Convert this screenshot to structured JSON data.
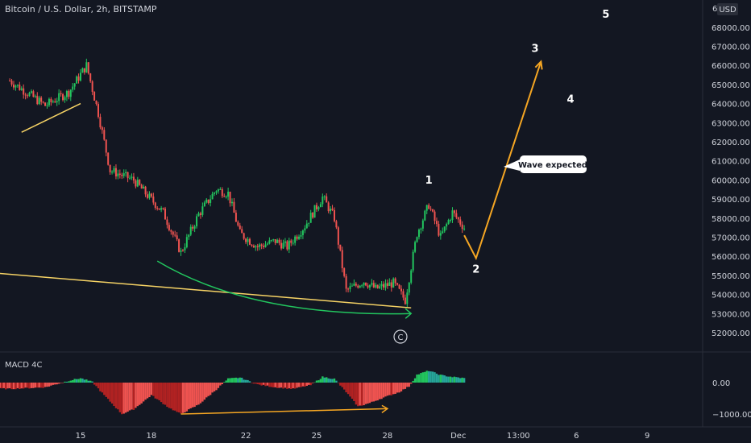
{
  "header": {
    "symbol_title": "Bitcoin / U.S. Dollar, 2h, BITSTAMP",
    "currency_badge": "USD"
  },
  "colors": {
    "background": "#131722",
    "up": "#26a69a",
    "up_bright": "#22c55e",
    "down": "#ef5350",
    "down_dark": "#b22222",
    "wave_path": "#f5a623",
    "trendline": "#f6d365",
    "support_arrow": "#22c55e",
    "text": "#d1d4dc"
  },
  "chart_data": [
    {
      "type": "candlestick",
      "title": "Bitcoin / U.S. Dollar, 2h, BITSTAMP",
      "ylabel": "USD",
      "ylim": [
        51000,
        69000
      ],
      "y_ticks": [
        52000,
        53000,
        54000,
        55000,
        56000,
        57000,
        58000,
        59000,
        60000,
        61000,
        62000,
        63000,
        64000,
        65000,
        66000,
        67000,
        68000
      ],
      "y_tick_labels": [
        "52000.00",
        "53000.00",
        "54000.00",
        "55000.00",
        "56000.00",
        "57000.00",
        "58000.00",
        "59000.00",
        "60000.00",
        "61000.00",
        "62000.00",
        "63000.00",
        "64000.00",
        "65000.00",
        "66000.00",
        "67000.00",
        "68000.00"
      ],
      "x_ticks": [
        "15",
        "18",
        "22",
        "25",
        "28",
        "Dec",
        "13:00",
        "6",
        "9"
      ],
      "price_close_path": [
        {
          "x": "Nov 12 00:00",
          "y": 65200
        },
        {
          "x": "Nov 13 12:00",
          "y": 63900
        },
        {
          "x": "Nov 14 12:00",
          "y": 64600
        },
        {
          "x": "Nov 15 06:00",
          "y": 66000
        },
        {
          "x": "Nov 15 18:00",
          "y": 63500
        },
        {
          "x": "Nov 16 06:00",
          "y": 60500
        },
        {
          "x": "Nov 17 06:00",
          "y": 60000
        },
        {
          "x": "Nov 17 18:00",
          "y": 59300
        },
        {
          "x": "Nov 18 12:00",
          "y": 58300
        },
        {
          "x": "Nov 19 06:00",
          "y": 56200
        },
        {
          "x": "Nov 20 00:00",
          "y": 58200
        },
        {
          "x": "Nov 20 18:00",
          "y": 59500
        },
        {
          "x": "Nov 21 06:00",
          "y": 59300
        },
        {
          "x": "Nov 21 18:00",
          "y": 57200
        },
        {
          "x": "Nov 22 12:00",
          "y": 56500
        },
        {
          "x": "Nov 23 06:00",
          "y": 56800
        },
        {
          "x": "Nov 23 18:00",
          "y": 56500
        },
        {
          "x": "Nov 24 12:00",
          "y": 57600
        },
        {
          "x": "Nov 25 06:00",
          "y": 59100
        },
        {
          "x": "Nov 25 18:00",
          "y": 58000
        },
        {
          "x": "Nov 26 06:00",
          "y": 54200
        },
        {
          "x": "Nov 27 00:00",
          "y": 54700
        },
        {
          "x": "Nov 27 12:00",
          "y": 54300
        },
        {
          "x": "Nov 28 06:00",
          "y": 54600
        },
        {
          "x": "Nov 28 18:00",
          "y": 53700
        },
        {
          "x": "Nov 29 06:00",
          "y": 57200
        },
        {
          "x": "Nov 29 18:00",
          "y": 58700
        },
        {
          "x": "Nov 30 06:00",
          "y": 57000
        },
        {
          "x": "Nov 30 18:00",
          "y": 58300
        },
        {
          "x": "Dec 1 06:00",
          "y": 57500
        }
      ],
      "projection": {
        "points": [
          {
            "x": "Dec 1 06:00",
            "y": 57100
          },
          {
            "x": "Dec 1 18:00",
            "y": 55900
          },
          {
            "x": "Dec 4 12:00",
            "y": 66200
          }
        ]
      },
      "wave_labels": [
        {
          "label": "1",
          "x": "Nov 29 18:00",
          "y": 59800
        },
        {
          "label": "2",
          "x": "Dec 1 18:00",
          "y": 55150
        },
        {
          "label": "3",
          "x": "Dec 4 06:00",
          "y": 66700
        },
        {
          "label": "4",
          "x": "Dec 5 18:00",
          "y": 64050
        },
        {
          "label": "5",
          "x": "Dec 7 06:00",
          "y": 68500
        }
      ],
      "corrective_marker": "C",
      "annotations": [
        {
          "text": "Wave expected"
        }
      ],
      "trendlines": [
        {
          "from": {
            "x": "Nov 12 12:00",
            "y": 62500
          },
          "to": {
            "x": "Nov 15 00:00",
            "y": 64000
          }
        },
        {
          "from": {
            "x": "Nov 11 00:00",
            "y": 55100
          },
          "to": {
            "x": "Nov 29 00:00",
            "y": 53300
          }
        }
      ],
      "grid": false
    },
    {
      "type": "histogram",
      "title": "MACD 4C",
      "y_ticks": [
        0,
        -1000
      ],
      "y_tick_labels": [
        "0.00",
        "−1000.00"
      ],
      "histogram_path": [
        {
          "x": "Nov 11 00:00",
          "y": -180
        },
        {
          "x": "Nov 12 00:00",
          "y": -200
        },
        {
          "x": "Nov 13 12:00",
          "y": -150
        },
        {
          "x": "Nov 14 12:00",
          "y": 60
        },
        {
          "x": "Nov 15 00:00",
          "y": 140
        },
        {
          "x": "Nov 15 12:00",
          "y": 20
        },
        {
          "x": "Nov 16 00:00",
          "y": -400
        },
        {
          "x": "Nov 16 18:00",
          "y": -1000
        },
        {
          "x": "Nov 17 06:00",
          "y": -850
        },
        {
          "x": "Nov 18 00:00",
          "y": -400
        },
        {
          "x": "Nov 18 18:00",
          "y": -800
        },
        {
          "x": "Nov 19 06:00",
          "y": -1000
        },
        {
          "x": "Nov 20 00:00",
          "y": -700
        },
        {
          "x": "Nov 20 18:00",
          "y": -220
        },
        {
          "x": "Nov 21 06:00",
          "y": 120
        },
        {
          "x": "Nov 21 18:00",
          "y": 160
        },
        {
          "x": "Nov 22 12:00",
          "y": -60
        },
        {
          "x": "Nov 23 06:00",
          "y": -150
        },
        {
          "x": "Nov 24 00:00",
          "y": -200
        },
        {
          "x": "Nov 24 18:00",
          "y": -80
        },
        {
          "x": "Nov 25 06:00",
          "y": 180
        },
        {
          "x": "Nov 25 18:00",
          "y": 120
        },
        {
          "x": "Nov 26 06:00",
          "y": -300
        },
        {
          "x": "Nov 26 18:00",
          "y": -760
        },
        {
          "x": "Nov 27 06:00",
          "y": -650
        },
        {
          "x": "Nov 27 18:00",
          "y": -500
        },
        {
          "x": "Nov 28 12:00",
          "y": -300
        },
        {
          "x": "Nov 28 22:00",
          "y": -120
        },
        {
          "x": "Nov 29 06:00",
          "y": 250
        },
        {
          "x": "Nov 29 18:00",
          "y": 380
        },
        {
          "x": "Nov 30 06:00",
          "y": 240
        },
        {
          "x": "Nov 30 18:00",
          "y": 180
        },
        {
          "x": "Dec 1 06:00",
          "y": 140
        }
      ],
      "divergence_line": {
        "from": {
          "x": "Nov 19 06:00",
          "y": -1000
        },
        "to": {
          "x": "Nov 28 00:00",
          "y": -830
        }
      }
    }
  ]
}
